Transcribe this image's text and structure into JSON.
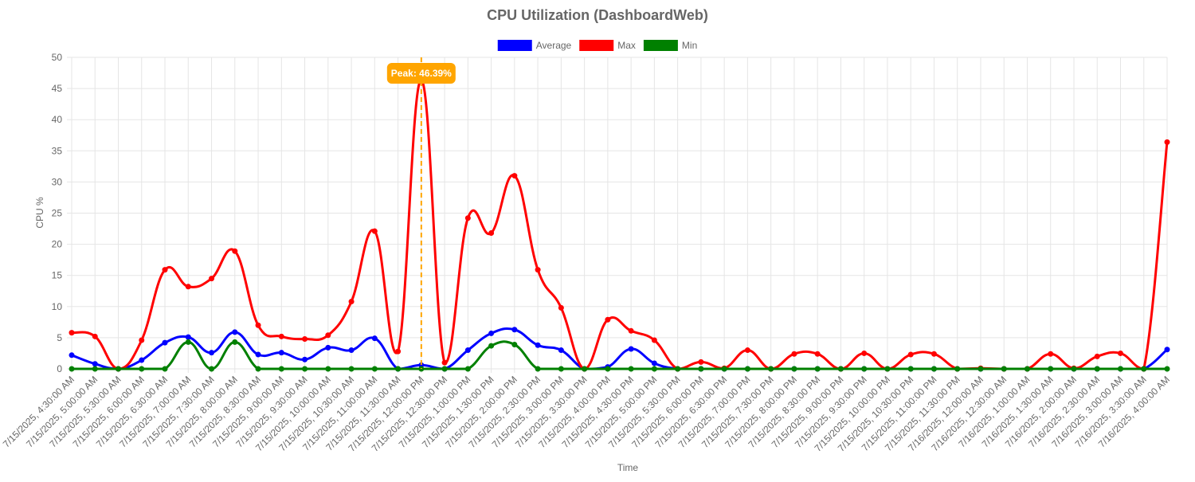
{
  "chart_data": {
    "type": "line",
    "title": "CPU Utilization (DashboardWeb)",
    "xlabel": "Time",
    "ylabel": "CPU %",
    "ylim": [
      0,
      50
    ],
    "yticks": [
      0,
      5,
      10,
      15,
      20,
      25,
      30,
      35,
      40,
      45,
      50
    ],
    "grid": true,
    "legend_position": "top",
    "categories": [
      "7/15/2025, 4:30:00 AM",
      "7/15/2025, 5:00:00 AM",
      "7/15/2025, 5:30:00 AM",
      "7/15/2025, 6:00:00 AM",
      "7/15/2025, 6:30:00 AM",
      "7/15/2025, 7:00:00 AM",
      "7/15/2025, 7:30:00 AM",
      "7/15/2025, 8:00:00 AM",
      "7/15/2025, 8:30:00 AM",
      "7/15/2025, 9:00:00 AM",
      "7/15/2025, 9:30:00 AM",
      "7/15/2025, 10:00:00 AM",
      "7/15/2025, 10:30:00 AM",
      "7/15/2025, 11:00:00 AM",
      "7/15/2025, 11:30:00 AM",
      "7/15/2025, 12:00:00 PM",
      "7/15/2025, 12:30:00 PM",
      "7/15/2025, 1:00:00 PM",
      "7/15/2025, 1:30:00 PM",
      "7/15/2025, 2:00:00 PM",
      "7/15/2025, 2:30:00 PM",
      "7/15/2025, 3:00:00 PM",
      "7/15/2025, 3:30:00 PM",
      "7/15/2025, 4:00:00 PM",
      "7/15/2025, 4:30:00 PM",
      "7/15/2025, 5:00:00 PM",
      "7/15/2025, 5:30:00 PM",
      "7/15/2025, 6:00:00 PM",
      "7/15/2025, 6:30:00 PM",
      "7/15/2025, 7:00:00 PM",
      "7/15/2025, 7:30:00 PM",
      "7/15/2025, 8:00:00 PM",
      "7/15/2025, 8:30:00 PM",
      "7/15/2025, 9:00:00 PM",
      "7/15/2025, 9:30:00 PM",
      "7/15/2025, 10:00:00 PM",
      "7/15/2025, 10:30:00 PM",
      "7/15/2025, 11:00:00 PM",
      "7/15/2025, 11:30:00 PM",
      "7/16/2025, 12:00:00 AM",
      "7/16/2025, 12:30:00 AM",
      "7/16/2025, 1:00:00 AM",
      "7/16/2025, 1:30:00 AM",
      "7/16/2025, 2:00:00 AM",
      "7/16/2025, 2:30:00 AM",
      "7/16/2025, 3:00:00 AM",
      "7/16/2025, 3:30:00 AM",
      "7/16/2025, 4:00:00 AM"
    ],
    "series": [
      {
        "name": "Average",
        "color": "#0000ff",
        "values": [
          2.2,
          0.8,
          0,
          1.4,
          4.2,
          5.1,
          2.6,
          5.9,
          2.3,
          2.6,
          1.5,
          3.4,
          3.0,
          4.9,
          0,
          0.6,
          0,
          3.0,
          5.7,
          6.3,
          3.8,
          3.0,
          0,
          0.3,
          3.2,
          0.9,
          0,
          0,
          0,
          0,
          0,
          0,
          0,
          0,
          0,
          0,
          0,
          0,
          0,
          0,
          0,
          0,
          0,
          0,
          0,
          0,
          0,
          3.1
        ]
      },
      {
        "name": "Max",
        "color": "#ff0000",
        "values": [
          5.8,
          5.2,
          0,
          4.6,
          15.9,
          13.2,
          14.5,
          18.9,
          7.0,
          5.2,
          4.8,
          5.4,
          10.8,
          22.1,
          2.8,
          46.39,
          1.0,
          24.2,
          21.8,
          31.0,
          15.9,
          9.8,
          0,
          7.9,
          6.1,
          4.6,
          0,
          1.1,
          0.1,
          3.0,
          0,
          2.4,
          2.4,
          0,
          2.5,
          0,
          2.3,
          2.4,
          0,
          0.1,
          0,
          0,
          2.4,
          0.1,
          2.0,
          2.5,
          0,
          36.4
        ]
      },
      {
        "name": "Min",
        "color": "#008000",
        "values": [
          0,
          0,
          0,
          0,
          0,
          4.3,
          0,
          4.3,
          0,
          0,
          0,
          0,
          0,
          0,
          0,
          0,
          0,
          0,
          3.7,
          3.9,
          0,
          0,
          0,
          0,
          0,
          0,
          0,
          0,
          0,
          0,
          0,
          0,
          0,
          0,
          0,
          0,
          0,
          0,
          0,
          0,
          0,
          0,
          0,
          0,
          0,
          0,
          0,
          0
        ]
      }
    ],
    "annotation": {
      "label": "Peak: 46.39%",
      "category_index": 15,
      "value": 46.39,
      "color": "#ffa500"
    }
  }
}
